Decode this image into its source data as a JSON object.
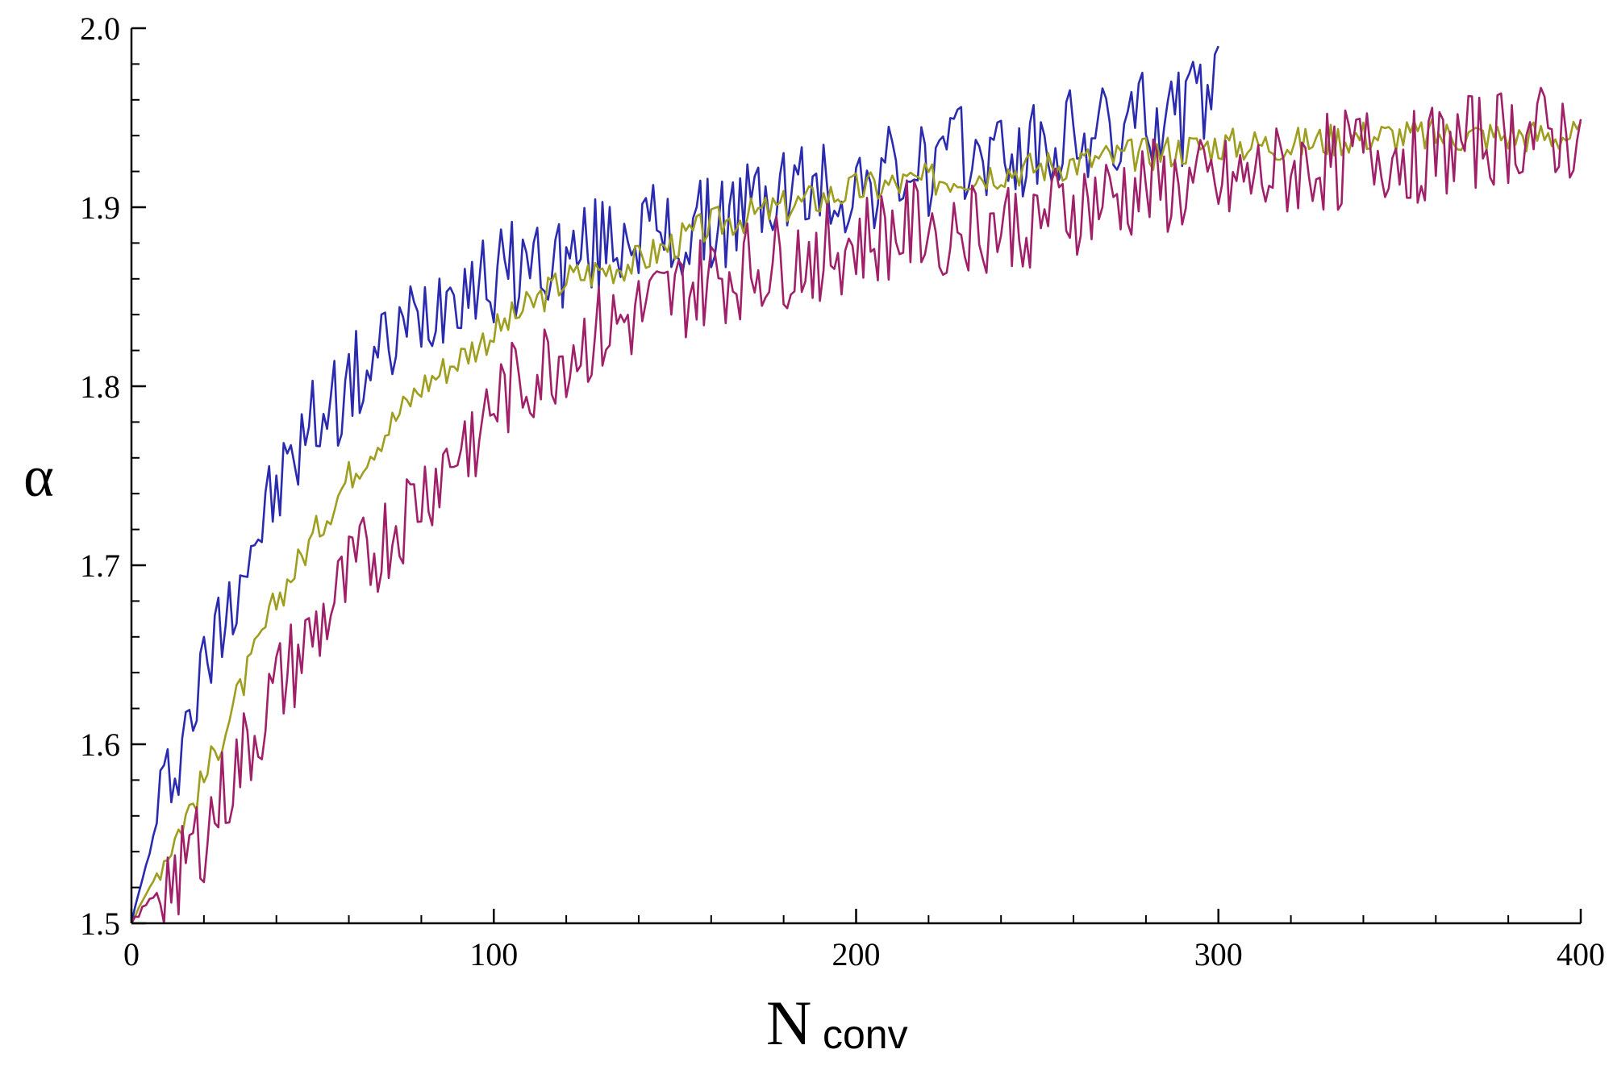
{
  "chart_data": {
    "type": "line",
    "title": "",
    "xlabel_main": "N",
    "xlabel_sub": "conv",
    "ylabel": "α",
    "xlim": [
      0,
      400
    ],
    "ylim": [
      1.5,
      2.0
    ],
    "grid": false,
    "legend": "none",
    "x_ticks": [
      "0",
      "100",
      "200",
      "300",
      "400"
    ],
    "y_ticks": [
      "1.5",
      "1.6",
      "1.7",
      "1.8",
      "1.9",
      "2.0"
    ],
    "series": [
      {
        "color": "#2b2bb0",
        "x": [
          0,
          10,
          20,
          30,
          40,
          50,
          60,
          70,
          80,
          90,
          100,
          110,
          120,
          130,
          140,
          150,
          160,
          170,
          180,
          190,
          200,
          210,
          220,
          230,
          240,
          250,
          260,
          270,
          280,
          290,
          300
        ],
        "values": [
          1.5,
          1.58,
          1.64,
          1.7,
          1.74,
          1.78,
          1.8,
          1.82,
          1.84,
          1.86,
          1.86,
          1.87,
          1.87,
          1.88,
          1.89,
          1.88,
          1.89,
          1.9,
          1.91,
          1.91,
          1.91,
          1.92,
          1.92,
          1.93,
          1.93,
          1.93,
          1.94,
          1.94,
          1.95,
          1.95,
          1.97
        ]
      },
      {
        "color": "#9e9e20",
        "x": [
          0,
          20,
          40,
          60,
          80,
          100,
          120,
          140,
          160,
          180,
          200,
          220,
          240,
          260,
          280,
          300,
          320,
          340,
          360,
          380,
          400
        ],
        "values": [
          1.5,
          1.58,
          1.68,
          1.75,
          1.8,
          1.83,
          1.86,
          1.87,
          1.89,
          1.9,
          1.91,
          1.915,
          1.92,
          1.925,
          1.93,
          1.935,
          1.935,
          1.94,
          1.94,
          1.94,
          1.94
        ]
      },
      {
        "color": "#a0206a",
        "x": [
          0,
          20,
          40,
          60,
          80,
          100,
          120,
          140,
          160,
          180,
          200,
          220,
          240,
          260,
          280,
          300,
          320,
          340,
          360,
          380,
          400
        ],
        "values": [
          1.5,
          1.55,
          1.63,
          1.69,
          1.74,
          1.79,
          1.82,
          1.84,
          1.86,
          1.87,
          1.88,
          1.89,
          1.89,
          1.9,
          1.91,
          1.91,
          1.92,
          1.93,
          1.93,
          1.94,
          1.94
        ]
      }
    ]
  }
}
